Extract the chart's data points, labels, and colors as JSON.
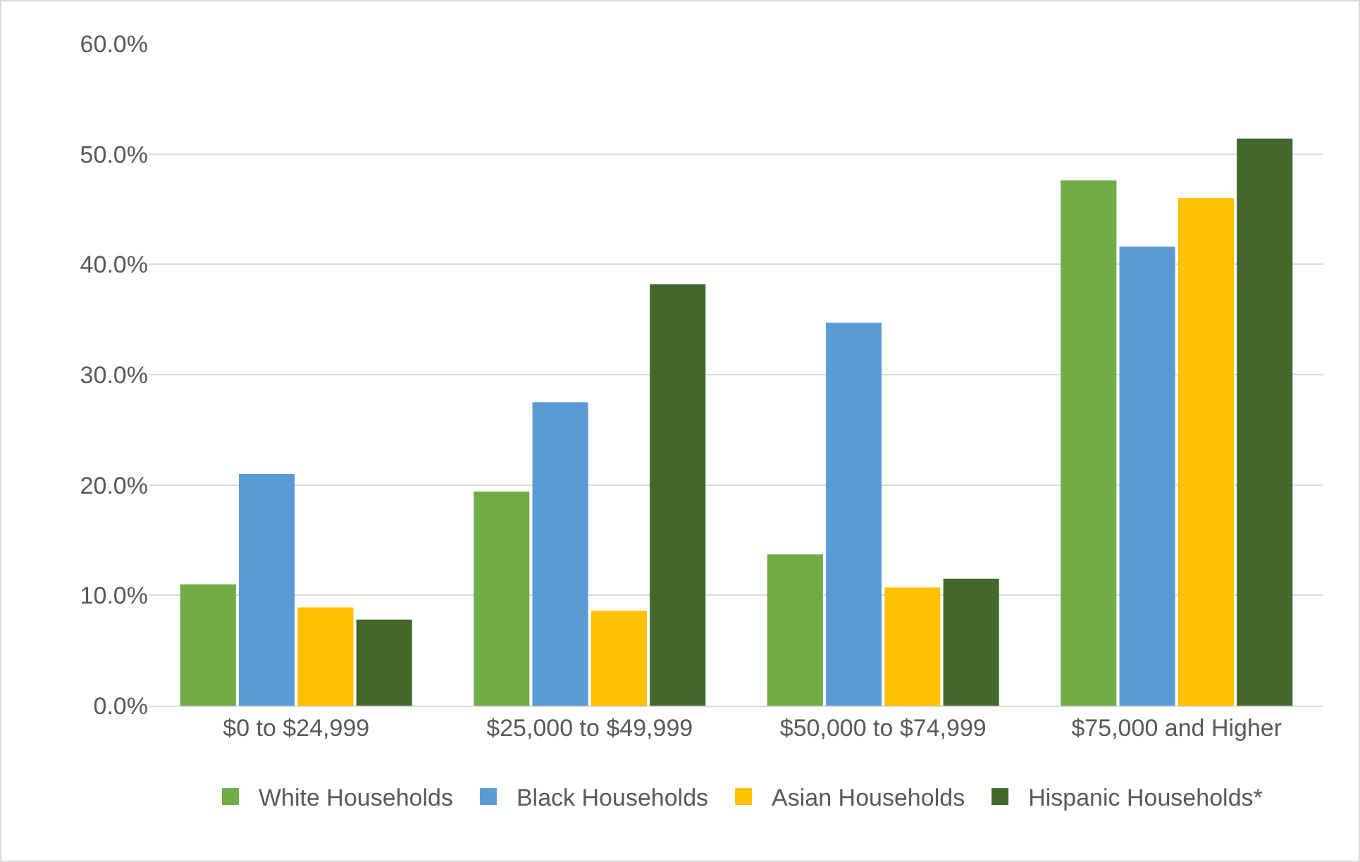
{
  "chart_data": {
    "type": "bar",
    "categories": [
      "$0 to $24,999",
      "$25,000 to $49,999",
      "$50,000 to $74,999",
      "$75,000 and Higher"
    ],
    "series": [
      {
        "name": "White Households",
        "color": "#70ad47",
        "values": [
          11.0,
          19.4,
          13.7,
          47.6
        ]
      },
      {
        "name": "Black Households",
        "color": "#5b9bd5",
        "values": [
          21.0,
          27.5,
          34.7,
          41.6
        ]
      },
      {
        "name": "Asian Households",
        "color": "#ffc000",
        "values": [
          8.9,
          8.6,
          10.7,
          46.0
        ]
      },
      {
        "name": "Hispanic Households*",
        "color": "#43682b",
        "values": [
          7.8,
          38.2,
          11.5,
          51.4
        ]
      }
    ],
    "ylim": [
      0,
      60
    ],
    "yticks": [
      {
        "value": 0,
        "label": "0.0%"
      },
      {
        "value": 10,
        "label": "10.0%"
      },
      {
        "value": 20,
        "label": "20.0%"
      },
      {
        "value": 30,
        "label": "30.0%"
      },
      {
        "value": 40,
        "label": "40.0%"
      },
      {
        "value": 50,
        "label": "50.0%"
      },
      {
        "value": 60,
        "label": "60.0%"
      }
    ],
    "grid": "y",
    "legend": "bottom"
  }
}
